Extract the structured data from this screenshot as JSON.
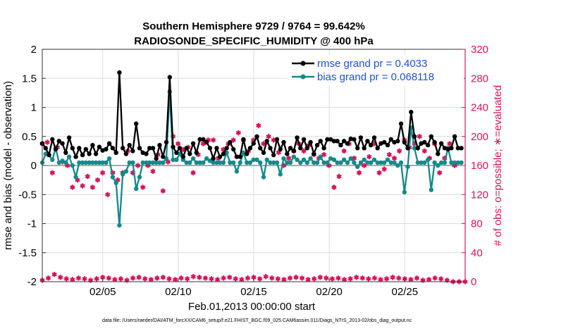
{
  "chart_data": {
    "type": "line",
    "title": "Southern Hemisphere 9729 / 9764 = 99.642%",
    "subtitle": "RADIOSONDE_SPECIFIC_HUMIDITY @ 400 hPa",
    "xlabel": "Feb.01,2013 00:00:00 start",
    "ylabel": "rmse and bias (model - observation)",
    "ylabel_right": "# of obs: o=possible; ∗=evaluated",
    "footnote": "data file: /Users/raeder/DAI/ATM_forcXX/CAM6_setup/f.e21.FHIST_BGC.f09_025.CAM6assim.011/Diags_NTrS_2013-02/obs_diag_output.nc",
    "xlim": [
      1,
      29
    ],
    "ylim": [
      -2,
      2
    ],
    "ylim_right": [
      0,
      320
    ],
    "x_ticks": [
      5,
      10,
      15,
      20,
      25
    ],
    "x_tick_labels": [
      "02/05",
      "02/10",
      "02/15",
      "02/20",
      "02/25"
    ],
    "y_ticks": [
      -2,
      -1.5,
      -1,
      -0.5,
      0,
      0.5,
      1,
      1.5,
      2
    ],
    "y_tick_labels": [
      "-2",
      "-1.5",
      "-1",
      "-0.5",
      "0",
      "0.5",
      "1",
      "1.5",
      "2"
    ],
    "y_right_ticks": [
      0,
      40,
      80,
      120,
      160,
      200,
      240,
      280,
      320
    ],
    "y_right_tick_labels": [
      "0",
      "40",
      "80",
      "120",
      "160",
      "200",
      "240",
      "280",
      "320"
    ],
    "grid": true,
    "legend": "top-right",
    "series": [
      {
        "name": "rmse grand pr = 0.4033",
        "axis": "left",
        "color": "#000000",
        "marker": "filled-circle",
        "values": [
          0.38,
          0.3,
          0.18,
          0.45,
          0.28,
          0.42,
          0.38,
          0.22,
          0.48,
          0.3,
          0.15,
          0.3,
          0.18,
          0.28,
          0.2,
          0.35,
          0.2,
          0.32,
          0.26,
          0.28,
          0.38,
          0.3,
          0.22,
          1.6,
          0.3,
          0.2,
          0.35,
          0.25,
          0.72,
          0.3,
          0.22,
          0.2,
          0.3,
          0.3,
          0.12,
          0.35,
          0.15,
          0.4,
          1.52,
          0.32,
          0.22,
          0.3,
          0.15,
          0.3,
          0.2,
          0.38,
          0.22,
          0.45,
          0.45,
          0.4,
          0.3,
          0.12,
          0.3,
          0.15,
          0.2,
          0.3,
          0.4,
          0.28,
          0.15,
          0.15,
          0.45,
          0.2,
          0.3,
          0.38,
          0.5,
          0.3,
          0.22,
          0.42,
          0.3,
          0.18,
          0.45,
          0.28,
          0.4,
          0.2,
          0.3,
          0.25,
          0.48,
          0.3,
          0.45,
          0.3,
          0.4,
          0.2,
          0.35,
          0.42,
          0.3,
          0.45,
          0.45,
          0.42,
          0.42,
          0.35,
          0.42,
          0.38,
          0.46,
          0.45,
          0.3,
          0.48,
          0.3,
          0.42,
          0.35,
          0.48,
          0.3,
          0.38,
          0.4,
          0.35,
          0.45,
          0.4,
          0.42,
          0.72,
          0.4,
          0.3,
          0.92,
          0.5,
          0.3,
          0.38,
          0.4,
          0.35,
          0.5,
          0.4,
          0.2,
          0.38,
          0.3,
          0.28,
          0.3,
          0.5,
          0.3,
          0.3
        ],
        "values_x_start": 1.0,
        "values_x_step": 0.222
      },
      {
        "name": "bias grand pr = 0.068118",
        "axis": "left",
        "color": "#138a8a",
        "marker": "filled-circle",
        "values": [
          0.05,
          0.2,
          0.18,
          0.1,
          0.3,
          0.05,
          0.08,
          0.05,
          0.15,
          0.0,
          -0.2,
          0.05,
          0.05,
          0.05,
          0.05,
          0.05,
          0.05,
          0.05,
          0.05,
          0.05,
          0.12,
          -0.2,
          -0.3,
          -1.03,
          -0.15,
          -0.1,
          0.05,
          0.05,
          -0.4,
          -0.2,
          0.05,
          0.05,
          0.05,
          0.05,
          0.05,
          0.05,
          0.05,
          0.12,
          1.27,
          0.1,
          0.1,
          0.2,
          0.1,
          0.05,
          0.05,
          0.12,
          0.05,
          0.05,
          0.05,
          0.12,
          0.08,
          0.05,
          0.05,
          0.05,
          0.05,
          0.22,
          0.05,
          0.05,
          -0.1,
          0.05,
          0.22,
          0.05,
          0.05,
          0.1,
          0.1,
          0.05,
          -0.2,
          0.1,
          0.05,
          0.05,
          0.05,
          -0.15,
          0.12,
          0.05,
          0.05,
          0.15,
          0.1,
          0.05,
          0.1,
          0.05,
          0.12,
          0.05,
          0.05,
          0.15,
          0.05,
          0.05,
          0.12,
          0.1,
          0.05,
          0.05,
          0.1,
          0.05,
          0.12,
          0.05,
          -0.02,
          0.05,
          0.1,
          0.05,
          0.05,
          0.1,
          0.05,
          0.05,
          0.05,
          0.1,
          0.05,
          0.05,
          0.0,
          0.05,
          -0.46,
          -0.02,
          0.65,
          0.3,
          0.05,
          0.05,
          0.05,
          0.1,
          -0.42,
          0.05,
          0.0,
          0.05,
          0.05,
          0.3,
          0.05,
          0.05,
          0.05,
          0.05
        ],
        "values_x_start": 1.0,
        "values_x_step": 0.222
      },
      {
        "name": "obs evaluated",
        "axis": "right",
        "color": "#d6145a",
        "marker": "asterisk",
        "values": [
          190,
          192,
          150,
          185,
          165,
          160,
          130,
          140,
          132,
          145,
          130,
          140,
          150,
          120,
          150,
          140,
          150,
          180,
          150,
          160,
          130,
          160,
          152,
          175,
          125,
          165,
          200,
          190,
          182,
          185,
          150,
          175,
          190,
          195,
          195,
          170,
          182,
          190,
          195,
          205,
          195,
          180,
          195,
          215,
          190,
          200,
          195,
          178,
          160,
          170,
          180,
          190,
          180,
          188,
          175,
          170,
          175,
          160,
          130,
          145,
          180,
          190,
          170,
          150,
          160,
          172,
          190,
          150,
          155,
          175,
          170,
          180,
          195,
          185,
          190,
          200,
          180,
          170,
          190,
          150,
          170,
          190,
          160
        ],
        "values_x_start": 1.0,
        "values_x_step": 0.333
      },
      {
        "name": "obs possible",
        "axis": "right",
        "color": "#d6145a",
        "marker": "asterisk",
        "values": [
          2,
          5,
          10,
          6,
          4,
          3,
          5,
          4,
          2,
          4,
          6,
          5,
          3,
          4,
          2,
          5,
          6,
          4,
          3,
          5,
          6,
          4,
          3,
          5,
          4,
          7,
          6,
          5,
          4,
          3,
          5,
          6,
          4,
          3,
          5,
          6,
          4,
          7,
          5,
          4,
          3,
          5,
          6,
          5,
          3,
          4,
          6,
          5,
          4,
          5,
          3,
          4,
          6,
          5,
          4,
          5,
          3,
          4,
          6,
          5,
          4,
          3,
          5,
          2,
          3,
          5,
          4,
          2,
          0,
          0,
          0
        ],
        "values_x_start": 1.0,
        "values_x_step": 0.4
      }
    ]
  }
}
